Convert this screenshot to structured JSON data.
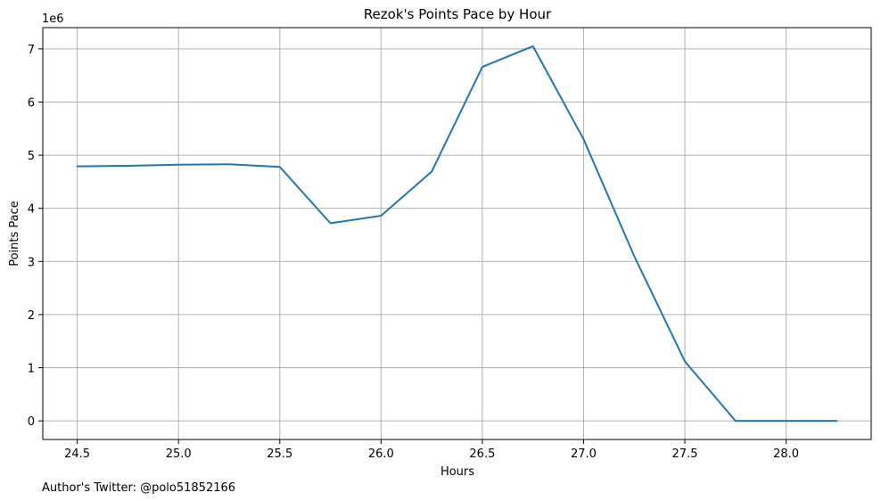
{
  "chart_data": {
    "type": "line",
    "title": "Rezok's Points Pace by Hour",
    "xlabel": "Hours",
    "ylabel": "Points Pace",
    "y_offset_label": "1e6",
    "xlim": [
      24.33,
      28.42
    ],
    "ylim": [
      -0.35,
      7.4
    ],
    "x_ticks": [
      24.5,
      25.0,
      25.5,
      26.0,
      26.5,
      27.0,
      27.5,
      28.0
    ],
    "x_tick_labels": [
      "24.5",
      "25.0",
      "25.5",
      "26.0",
      "26.5",
      "27.0",
      "27.5",
      "28.0"
    ],
    "y_ticks": [
      0,
      1,
      2,
      3,
      4,
      5,
      6,
      7
    ],
    "y_tick_labels": [
      "0",
      "1",
      "2",
      "3",
      "4",
      "5",
      "6",
      "7"
    ],
    "grid": true,
    "series": [
      {
        "color": "#1f77b4",
        "x": [
          24.5,
          24.75,
          25.0,
          25.25,
          25.5,
          25.75,
          26.0,
          26.25,
          26.5,
          26.75,
          27.0,
          27.25,
          27.5,
          27.75,
          28.0,
          28.25
        ],
        "y": [
          4.79,
          4.8,
          4.82,
          4.83,
          4.78,
          3.72,
          3.86,
          4.69,
          6.66,
          7.05,
          5.3,
          3.1,
          1.12,
          0.0,
          0.0,
          0.0
        ]
      }
    ]
  },
  "footer": {
    "text": "Author's Twitter: @polo51852166"
  }
}
